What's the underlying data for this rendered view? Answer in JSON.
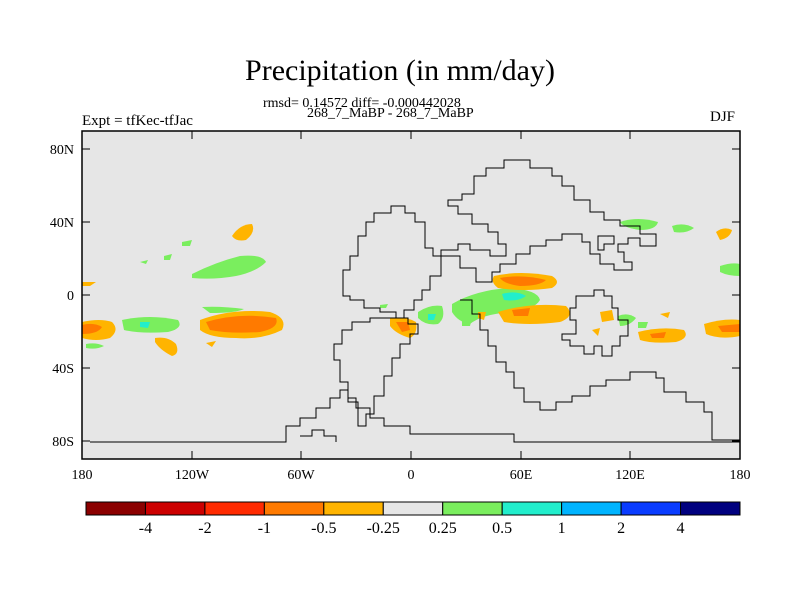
{
  "title": "Precipitation (in mm/day)",
  "stats": "rmsd= 0.14572 diff= -0.000442028",
  "runs": "268_7_MaBP - 268_7_MaBP",
  "left_label": "Expt = tfKec-tfJac",
  "season": "DJF",
  "lat_ticks": [
    "80N",
    "40N",
    "0",
    "40S",
    "80S"
  ],
  "lon_ticks": [
    "180",
    "120W",
    "60W",
    "0",
    "60E",
    "120E",
    "180"
  ],
  "colorbar": {
    "colors": [
      "#8b0000",
      "#cc0000",
      "#ff2a00",
      "#ff7a00",
      "#ffb400",
      "#e6e6e6",
      "#7aee5e",
      "#22eecc",
      "#00b4ff",
      "#0a3cff",
      "#00007f"
    ],
    "labels": [
      "-4",
      "-2",
      "-1",
      "-0.5",
      "-0.25",
      "0.25",
      "0.5",
      "1",
      "2",
      "4"
    ]
  },
  "colors": {
    "background": "#e6e6e6",
    "green": "#7aee5e",
    "cyan": "#22eecc",
    "orange": "#ffb400",
    "dark_orange": "#ff7a00",
    "red": "#ff2a00"
  }
}
